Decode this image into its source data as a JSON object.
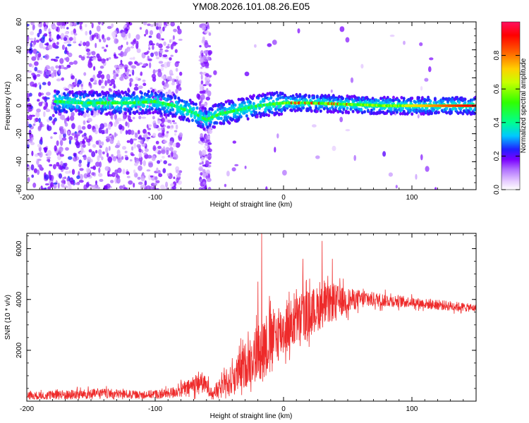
{
  "title": "YM08.2026.101.08.26.E05",
  "chart_data": [
    {
      "type": "heatmap",
      "name": "spectrogram",
      "xlabel": "Height of straight line (km)",
      "ylabel": "Frequency (Hz)",
      "xlim": [
        -200,
        150
      ],
      "ylim": [
        -60,
        60
      ],
      "xticks": [
        -200,
        -100,
        0,
        100
      ],
      "yticks": [
        -60,
        -40,
        -20,
        0,
        20,
        40,
        60
      ],
      "trace": {
        "description_points_x": [
          -175,
          -160,
          -140,
          -120,
          -100,
          -85,
          -70,
          -60,
          -55,
          -50,
          -40,
          -30,
          -20,
          -10,
          0,
          20,
          50,
          80,
          100,
          150
        ],
        "description_points_y": [
          3,
          2,
          2,
          2,
          3,
          0,
          -5,
          -10,
          -8,
          -6,
          -4,
          -2,
          0,
          1,
          2,
          2,
          1,
          0,
          0,
          0
        ]
      },
      "colorbar": {
        "label": "Normalized spectral amplitude",
        "range": [
          0.0,
          1.0
        ],
        "ticks": [
          0.0,
          0.2,
          0.4,
          0.6,
          0.8
        ],
        "tick_labels": [
          "0.0",
          "0.2",
          "0.4",
          "0.6",
          "0.8"
        ]
      }
    },
    {
      "type": "line",
      "name": "snr",
      "xlabel": "Height of straight line (km)",
      "ylabel": "SNR (10 * v/v)",
      "xlim": [
        -200,
        150
      ],
      "ylim": [
        0,
        6600
      ],
      "xticks": [
        -200,
        -100,
        0,
        100
      ],
      "yticks": [
        2000,
        4000,
        6000
      ],
      "color": "#ee2a2a",
      "envelope": {
        "x": [
          -200,
          -170,
          -140,
          -110,
          -90,
          -75,
          -65,
          -55,
          -45,
          -35,
          -25,
          -15,
          -5,
          5,
          15,
          25,
          40,
          55,
          70,
          85,
          100,
          115,
          130,
          150
        ],
        "mean": [
          200,
          250,
          300,
          250,
          300,
          500,
          800,
          350,
          600,
          1100,
          1700,
          2200,
          2600,
          3000,
          3300,
          3600,
          3900,
          4000,
          4000,
          3950,
          3900,
          3800,
          3750,
          3650
        ],
        "noise": [
          150,
          200,
          200,
          150,
          200,
          300,
          450,
          250,
          500,
          800,
          1000,
          1300,
          1100,
          1000,
          1000,
          900,
          700,
          400,
          300,
          250,
          200,
          200,
          200,
          150
        ]
      },
      "spikes": [
        {
          "x": -17,
          "y": 6600
        },
        {
          "x": 15,
          "y": 5600
        },
        {
          "x": 30,
          "y": 6300
        },
        {
          "x": 38,
          "y": 5600
        },
        {
          "x": -20,
          "y": 4700
        }
      ]
    }
  ]
}
